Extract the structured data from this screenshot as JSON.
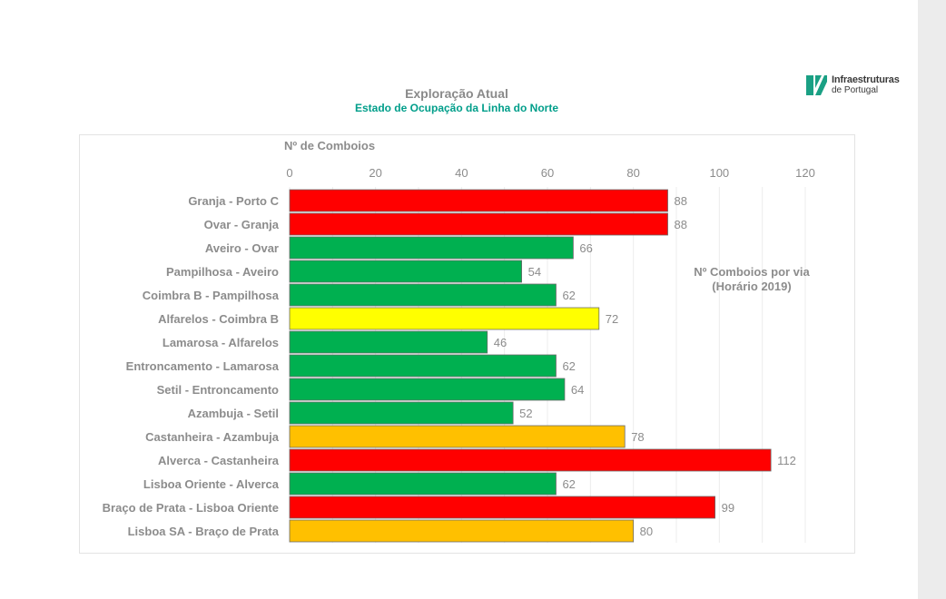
{
  "header": {
    "title": "Exploração Atual",
    "subtitle": "Estado de Ocupação da Linha do Norte"
  },
  "logo": {
    "line1": "Infraestruturas",
    "line2": "de Portugal",
    "icon": "ip-logo-mark",
    "color": "#1aa084"
  },
  "chart_data": {
    "type": "bar",
    "orientation": "horizontal",
    "axis_title": "Nº de Comboios",
    "xlim": [
      0,
      120
    ],
    "ticks": [
      0,
      20,
      40,
      60,
      80,
      100,
      120
    ],
    "grid": true,
    "annotation": [
      "Nº Comboios por via",
      "(Horário 2019)"
    ],
    "categories": [
      "Granja - Porto C",
      "Ovar - Granja",
      "Aveiro - Ovar",
      "Pampilhosa - Aveiro",
      "Coimbra B - Pampilhosa",
      "Alfarelos - Coimbra B",
      "Lamarosa - Alfarelos",
      "Entroncamento - Lamarosa",
      "Setil - Entroncamento",
      "Azambuja - Setil",
      "Castanheira - Azambuja",
      "Alverca - Castanheira",
      "Lisboa Oriente - Alverca",
      "Braço de Prata - Lisboa Oriente",
      "Lisboa SA - Braço de Prata"
    ],
    "values": [
      88,
      88,
      66,
      54,
      62,
      72,
      46,
      62,
      64,
      52,
      78,
      112,
      62,
      99,
      80
    ],
    "bar_colors": [
      "#ff0000",
      "#ff0000",
      "#00b050",
      "#00b050",
      "#00b050",
      "#ffff00",
      "#00b050",
      "#00b050",
      "#00b050",
      "#00b050",
      "#ffc000",
      "#ff0000",
      "#00b050",
      "#ff0000",
      "#ffc000"
    ]
  }
}
